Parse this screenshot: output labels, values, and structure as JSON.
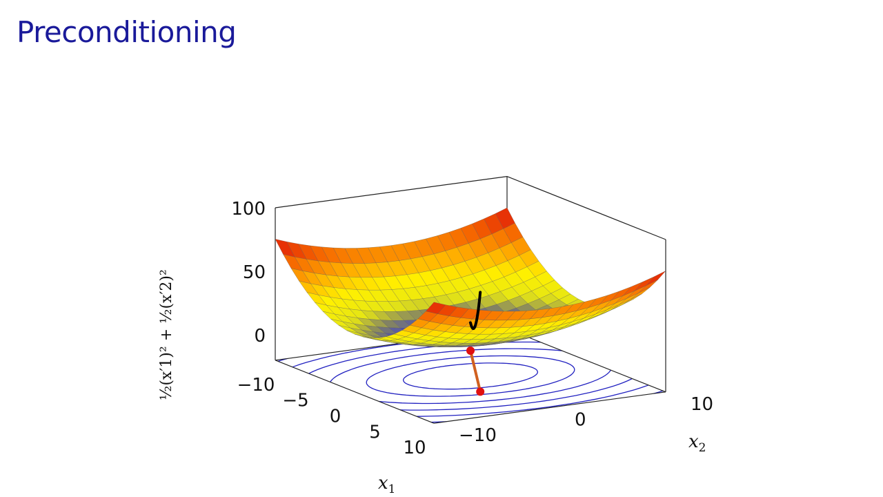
{
  "slide": {
    "title": "Preconditioning"
  },
  "chart_data": {
    "type": "surface",
    "function": "1/2 (x1')^2 + 1/2 (x2')^2",
    "xlabel": "x1",
    "ylabel": "x2",
    "zlabel": "½(x′1)² + ½(x′2)²",
    "xlim": [
      -10,
      10
    ],
    "ylim": [
      -10,
      10
    ],
    "zlim": [
      -20,
      100
    ],
    "x_ticks": [
      "−10",
      "−5",
      "0",
      "5",
      "10"
    ],
    "y_ticks": [
      "−10",
      "0",
      "10"
    ],
    "z_ticks": [
      "0",
      "50",
      "100"
    ],
    "contour_levels": [
      5,
      12,
      22,
      34,
      48,
      64,
      82,
      102,
      125,
      150,
      178
    ],
    "path": {
      "start": {
        "x1": 0,
        "x2": 0
      },
      "end": {
        "x1": 10,
        "x2": -6
      }
    },
    "colors": {
      "path": "#d06020",
      "points": "#e01010",
      "contours": "#2020c0",
      "curve": "#000000"
    }
  }
}
